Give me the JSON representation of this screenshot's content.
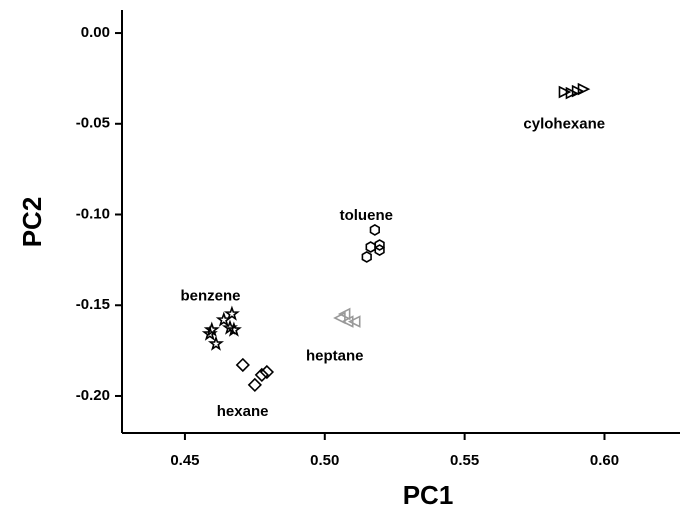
{
  "chart_data": {
    "type": "scatter",
    "x_label": "PC1",
    "y_label": "PC2",
    "xlim": [
      0.4275,
      0.627
    ],
    "ylim": [
      -0.2204,
      0.0127
    ],
    "xticks": [
      0.45,
      {
        "value": 0.5,
        "label": "0.50"
      },
      0.55,
      {
        "value": 0.6,
        "label": "0.60"
      }
    ],
    "yticks": [
      {
        "value": 0,
        "label": "0.00"
      },
      {
        "value": -0.05,
        "label": "-0.05"
      },
      {
        "value": -0.1,
        "label": "-0.10"
      },
      {
        "value": -0.15,
        "label": "-0.15"
      },
      {
        "value": -0.2,
        "label": "-0.20"
      }
    ],
    "series": [
      {
        "name": "cylohexane",
        "color": "#000000",
        "marker": "triangle-right",
        "x": [
          0.5857,
          0.5882,
          0.5904,
          0.5925
        ],
        "values": [
          -0.0325,
          -0.0331,
          -0.032,
          -0.0309
        ]
      },
      {
        "name": "toluene",
        "color": "#000000",
        "marker": "hexagon",
        "x": [
          0.5179,
          0.5164,
          0.5196,
          0.5196,
          0.515
        ],
        "values": [
          -0.1085,
          -0.1179,
          -0.1168,
          -0.1196,
          -0.1234
        ]
      },
      {
        "name": "benzene",
        "color": "#000000",
        "marker": "star",
        "x": [
          0.4596,
          0.4611,
          0.4639,
          0.4661,
          0.4668,
          0.4675,
          0.4589
        ],
        "values": [
          -0.1636,
          -0.1713,
          -0.1581,
          -0.1625,
          -0.1548,
          -0.1636,
          -0.1658
        ]
      },
      {
        "name": "heptane",
        "color": "#999999",
        "marker": "triangle-left",
        "x": [
          0.5054,
          0.5071,
          0.5082,
          0.5107
        ],
        "values": [
          -0.157,
          -0.1548,
          -0.159,
          -0.159
        ]
      },
      {
        "name": "hexane",
        "color": "#000000",
        "marker": "diamond",
        "x": [
          0.4707,
          0.475,
          0.4775,
          0.4793
        ],
        "values": [
          -0.1829,
          -0.1939,
          -0.1884,
          -0.1868
        ]
      }
    ]
  }
}
